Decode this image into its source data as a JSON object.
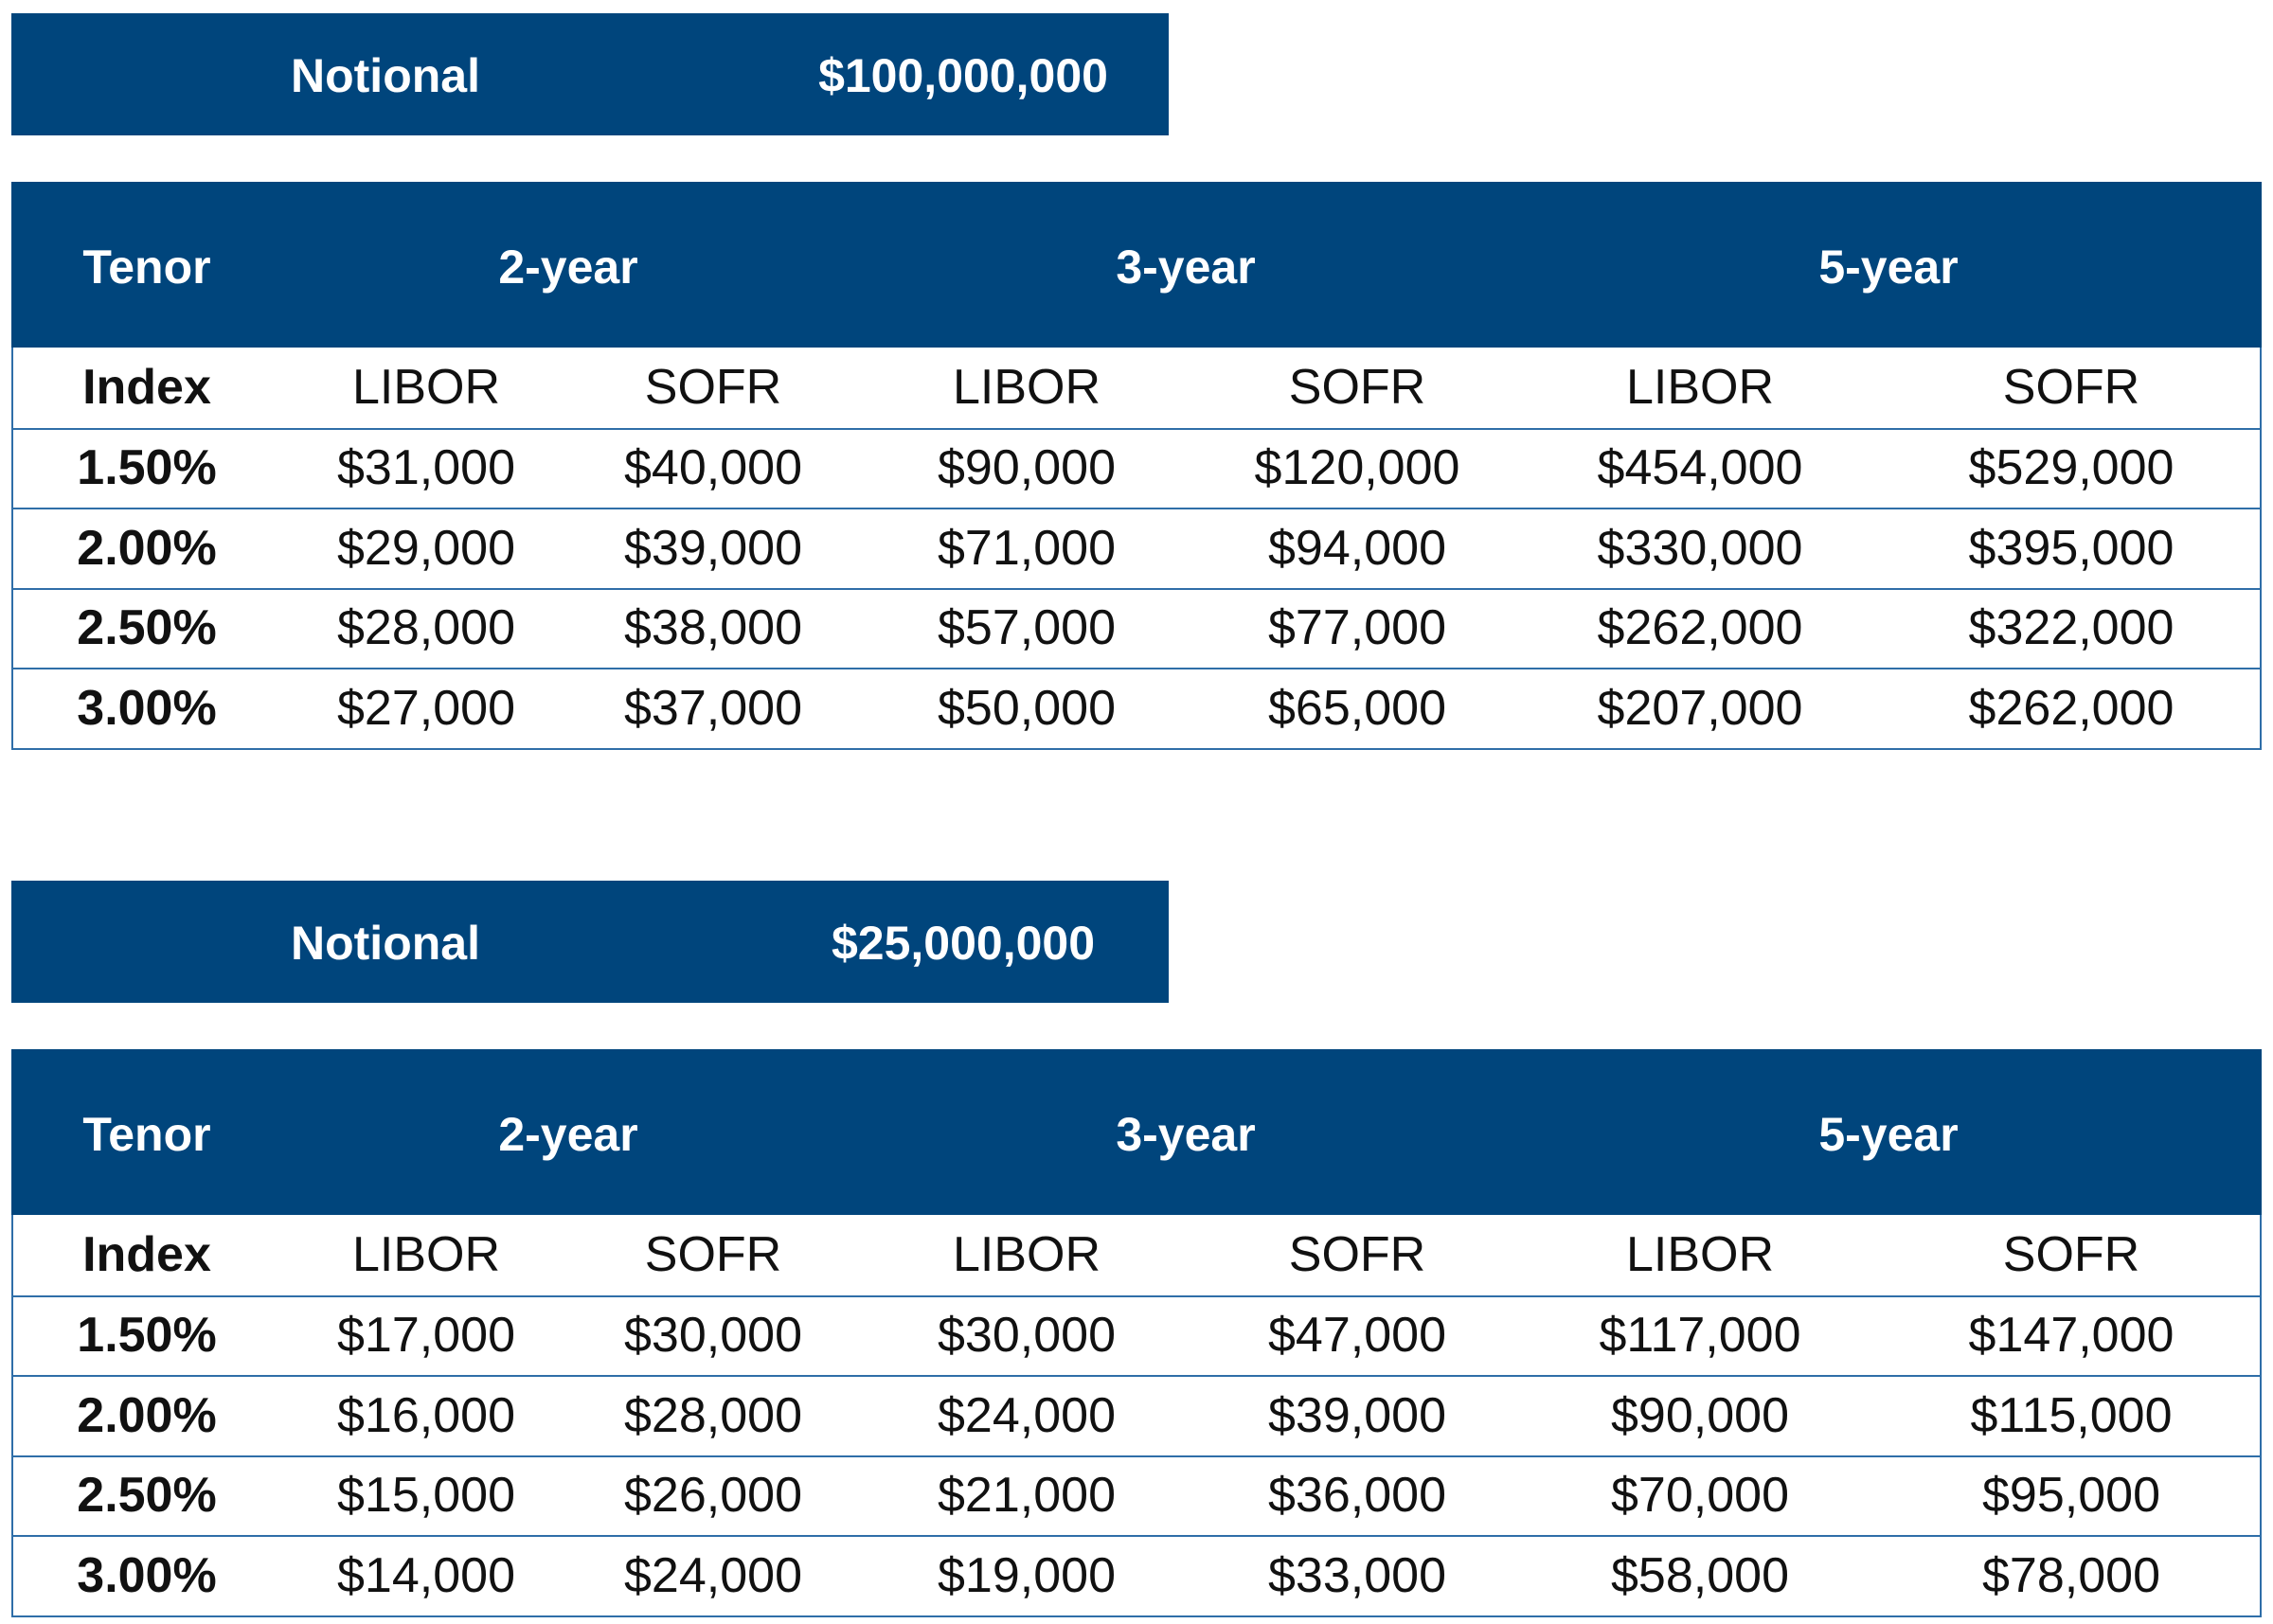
{
  "tables": [
    {
      "notional": {
        "label": "Notional",
        "value": "$100,000,000"
      },
      "header": {
        "label": "Tenor",
        "tenors": [
          "2-year",
          "3-year",
          "5-year"
        ]
      },
      "index": {
        "label": "Index",
        "columns": [
          "LIBOR",
          "SOFR",
          "LIBOR",
          "SOFR",
          "LIBOR",
          "SOFR"
        ]
      },
      "rows": [
        [
          "1.50%",
          "$31,000",
          "$40,000",
          "$90,000",
          "$120,000",
          "$454,000",
          "$529,000"
        ],
        [
          "2.00%",
          "$29,000",
          "$39,000",
          "$71,000",
          "$94,000",
          "$330,000",
          "$395,000"
        ],
        [
          "2.50%",
          "$28,000",
          "$38,000",
          "$57,000",
          "$77,000",
          "$262,000",
          "$322,000"
        ],
        [
          "3.00%",
          "$27,000",
          "$37,000",
          "$50,000",
          "$65,000",
          "$207,000",
          "$262,000"
        ]
      ]
    },
    {
      "notional": {
        "label": "Notional",
        "value": "$25,000,000"
      },
      "header": {
        "label": "Tenor",
        "tenors": [
          "2-year",
          "3-year",
          "5-year"
        ]
      },
      "index": {
        "label": "Index",
        "columns": [
          "LIBOR",
          "SOFR",
          "LIBOR",
          "SOFR",
          "LIBOR",
          "SOFR"
        ]
      },
      "rows": [
        [
          "1.50%",
          "$17,000",
          "$30,000",
          "$30,000",
          "$47,000",
          "$117,000",
          "$147,000"
        ],
        [
          "2.00%",
          "$16,000",
          "$28,000",
          "$24,000",
          "$39,000",
          "$90,000",
          "$115,000"
        ],
        [
          "2.50%",
          "$15,000",
          "$26,000",
          "$21,000",
          "$36,000",
          "$70,000",
          "$95,000"
        ],
        [
          "3.00%",
          "$14,000",
          "$24,000",
          "$19,000",
          "$33,000",
          "$58,000",
          "$78,000"
        ]
      ]
    }
  ]
}
